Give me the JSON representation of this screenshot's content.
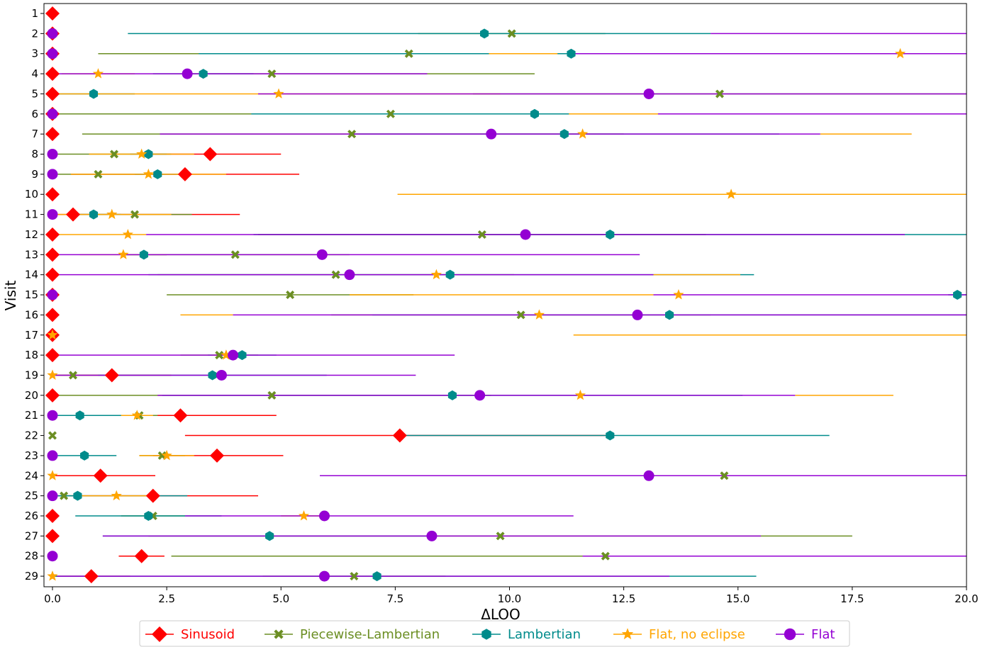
{
  "chart_data": {
    "type": "scatter",
    "xlabel": "ΔLOO",
    "ylabel": "Visit",
    "xlim": [
      0,
      20
    ],
    "x_ticks": [
      "0.0",
      "2.5",
      "5.0",
      "7.5",
      "10.0",
      "12.5",
      "15.0",
      "17.5",
      "20.0"
    ],
    "y_categories": [
      "1",
      "2",
      "3",
      "4",
      "5",
      "6",
      "7",
      "8",
      "9",
      "10",
      "11",
      "12",
      "13",
      "14",
      "15",
      "16",
      "17",
      "18",
      "19",
      "20",
      "21",
      "22",
      "23",
      "24",
      "25",
      "26",
      "27",
      "28",
      "29"
    ],
    "legend_position": "bottom",
    "series": [
      {
        "name": "Sinusoid",
        "color": "#ff0000",
        "marker": "diamond",
        "points": [
          {
            "visit": 1,
            "x": 0,
            "lo": 0,
            "hi": 0
          },
          {
            "visit": 2,
            "x": 0,
            "lo": 0,
            "hi": 0
          },
          {
            "visit": 3,
            "x": 0,
            "lo": 0,
            "hi": 0
          },
          {
            "visit": 4,
            "x": 0,
            "lo": 0,
            "hi": 0
          },
          {
            "visit": 5,
            "x": 0,
            "lo": 0,
            "hi": 0
          },
          {
            "visit": 6,
            "x": 0,
            "lo": 0,
            "hi": 0
          },
          {
            "visit": 7,
            "x": 0,
            "lo": 0,
            "hi": 0
          },
          {
            "visit": 8,
            "x": 3.45,
            "lo": 1.9,
            "hi": 5.0
          },
          {
            "visit": 9,
            "x": 2.9,
            "lo": 0.4,
            "hi": 5.4
          },
          {
            "visit": 10,
            "x": 0,
            "lo": 0,
            "hi": 0
          },
          {
            "visit": 11,
            "x": 0.45,
            "lo": 0,
            "hi": 4.1
          },
          {
            "visit": 12,
            "x": 0,
            "lo": 0,
            "hi": 0
          },
          {
            "visit": 13,
            "x": 0,
            "lo": 0,
            "hi": 0
          },
          {
            "visit": 14,
            "x": 0,
            "lo": 0,
            "hi": 0
          },
          {
            "visit": 15,
            "x": 0,
            "lo": 0,
            "hi": 0
          },
          {
            "visit": 16,
            "x": 0,
            "lo": 0,
            "hi": 0
          },
          {
            "visit": 17,
            "x": 0,
            "lo": 0,
            "hi": 0
          },
          {
            "visit": 18,
            "x": 0,
            "lo": 0,
            "hi": 0
          },
          {
            "visit": 19,
            "x": 1.3,
            "lo": 0,
            "hi": 2.6
          },
          {
            "visit": 20,
            "x": 0,
            "lo": 0,
            "hi": 0
          },
          {
            "visit": 21,
            "x": 2.8,
            "lo": 0.7,
            "hi": 4.9
          },
          {
            "visit": 22,
            "x": 7.6,
            "lo": 2.9,
            "hi": 12.3
          },
          {
            "visit": 23,
            "x": 3.6,
            "lo": 2.2,
            "hi": 5.05
          },
          {
            "visit": 24,
            "x": 1.05,
            "lo": 0,
            "hi": 2.25
          },
          {
            "visit": 25,
            "x": 2.2,
            "lo": 0,
            "hi": 4.5
          },
          {
            "visit": 26,
            "x": 0,
            "lo": 0,
            "hi": 0
          },
          {
            "visit": 27,
            "x": 0,
            "lo": 0,
            "hi": 0
          },
          {
            "visit": 28,
            "x": 1.95,
            "lo": 1.45,
            "hi": 2.45
          },
          {
            "visit": 29,
            "x": 0.85,
            "lo": 0,
            "hi": 1.7
          }
        ]
      },
      {
        "name": "Piecewise-Lambertian",
        "color": "#6b8e23",
        "marker": "x",
        "points": [
          {
            "visit": 2,
            "x": 10.05,
            "lo": 8.0,
            "hi": 12.1
          },
          {
            "visit": 3,
            "x": 7.8,
            "lo": 1.0,
            "hi": 14.6
          },
          {
            "visit": 4,
            "x": 4.8,
            "lo": 3.0,
            "hi": 10.55
          },
          {
            "visit": 5,
            "x": 14.6,
            "lo": 9.2,
            "hi": 20.0
          },
          {
            "visit": 6,
            "x": 7.4,
            "lo": 0,
            "hi": 14.8
          },
          {
            "visit": 7,
            "x": 6.55,
            "lo": 0.65,
            "hi": 12.5
          },
          {
            "visit": 8,
            "x": 1.35,
            "lo": 0.1,
            "hi": 2.6
          },
          {
            "visit": 9,
            "x": 1.0,
            "lo": 0,
            "hi": 2.0
          },
          {
            "visit": 11,
            "x": 1.8,
            "lo": 0.5,
            "hi": 3.05
          },
          {
            "visit": 12,
            "x": 9.4,
            "lo": 4.5,
            "hi": 14.3
          },
          {
            "visit": 13,
            "x": 4.0,
            "lo": 1.5,
            "hi": 6.5
          },
          {
            "visit": 14,
            "x": 6.2,
            "lo": 2.3,
            "hi": 10.1
          },
          {
            "visit": 15,
            "x": 5.2,
            "lo": 2.5,
            "hi": 7.9
          },
          {
            "visit": 16,
            "x": 10.25,
            "lo": 6.1,
            "hi": 14.4
          },
          {
            "visit": 18,
            "x": 3.65,
            "lo": 2.8,
            "hi": 4.5
          },
          {
            "visit": 19,
            "x": 0.45,
            "lo": 0,
            "hi": 1.2
          },
          {
            "visit": 20,
            "x": 4.8,
            "lo": 0,
            "hi": 9.6
          },
          {
            "visit": 21,
            "x": 1.9,
            "lo": 1.5,
            "hi": 2.3
          },
          {
            "visit": 22,
            "x": 0,
            "lo": 0,
            "hi": 0
          },
          {
            "visit": 23,
            "x": 2.4,
            "lo": 1.9,
            "hi": 2.9
          },
          {
            "visit": 24,
            "x": 14.7,
            "lo": 11.4,
            "hi": 18.0
          },
          {
            "visit": 25,
            "x": 0.25,
            "lo": 0,
            "hi": 0.6
          },
          {
            "visit": 26,
            "x": 2.2,
            "lo": 1.5,
            "hi": 2.9
          },
          {
            "visit": 27,
            "x": 9.8,
            "lo": 2.1,
            "hi": 17.5
          },
          {
            "visit": 28,
            "x": 12.1,
            "lo": 2.6,
            "hi": 20.0
          },
          {
            "visit": 29,
            "x": 6.6,
            "lo": 4.6,
            "hi": 8.6
          }
        ]
      },
      {
        "name": "Lambertian",
        "color": "#008b8b",
        "marker": "hexagon",
        "points": [
          {
            "visit": 2,
            "x": 9.45,
            "lo": 1.65,
            "hi": 14.4
          },
          {
            "visit": 3,
            "x": 11.35,
            "lo": 3.2,
            "hi": 19.5
          },
          {
            "visit": 4,
            "x": 3.3,
            "lo": 2.2,
            "hi": 4.4
          },
          {
            "visit": 5,
            "x": 0.9,
            "lo": 0,
            "hi": 1.8
          },
          {
            "visit": 6,
            "x": 10.55,
            "lo": 4.35,
            "hi": 16.75
          },
          {
            "visit": 7,
            "x": 11.2,
            "lo": 6.5,
            "hi": 15.9
          },
          {
            "visit": 8,
            "x": 2.1,
            "lo": 1.7,
            "hi": 2.5
          },
          {
            "visit": 9,
            "x": 2.3,
            "lo": 1.8,
            "hi": 2.8
          },
          {
            "visit": 11,
            "x": 0.9,
            "lo": 0.3,
            "hi": 1.5
          },
          {
            "visit": 12,
            "x": 12.2,
            "lo": 4.4,
            "hi": 20.0
          },
          {
            "visit": 13,
            "x": 2.0,
            "lo": 1.5,
            "hi": 2.5
          },
          {
            "visit": 14,
            "x": 8.7,
            "lo": 2.1,
            "hi": 15.35
          },
          {
            "visit": 15,
            "x": 19.8,
            "lo": 19.6,
            "hi": 20.0
          },
          {
            "visit": 16,
            "x": 13.5,
            "lo": 7.0,
            "hi": 20.0
          },
          {
            "visit": 18,
            "x": 4.15,
            "lo": 3.4,
            "hi": 4.9
          },
          {
            "visit": 19,
            "x": 3.5,
            "lo": 1.0,
            "hi": 6.0
          },
          {
            "visit": 20,
            "x": 8.75,
            "lo": 2.4,
            "hi": 15.1
          },
          {
            "visit": 21,
            "x": 0.6,
            "lo": 0,
            "hi": 1.6
          },
          {
            "visit": 22,
            "x": 12.2,
            "lo": 7.5,
            "hi": 17.0
          },
          {
            "visit": 23,
            "x": 0.7,
            "lo": 0,
            "hi": 1.4
          },
          {
            "visit": 24,
            "x": 13.05,
            "lo": 12.4,
            "hi": 13.7
          },
          {
            "visit": 25,
            "x": 0.55,
            "lo": 0,
            "hi": 2.95
          },
          {
            "visit": 26,
            "x": 2.1,
            "lo": 0.5,
            "hi": 3.7
          },
          {
            "visit": 27,
            "x": 4.75,
            "lo": 1.1,
            "hi": 8.4
          },
          {
            "visit": 29,
            "x": 7.1,
            "lo": 0,
            "hi": 15.4
          }
        ]
      },
      {
        "name": "Flat, no eclipse",
        "color": "#ffa500",
        "marker": "star",
        "points": [
          {
            "visit": 3,
            "x": 18.55,
            "lo": 9.55,
            "hi": 11.05
          },
          {
            "visit": 4,
            "x": 1.0,
            "lo": 0.2,
            "hi": 1.8
          },
          {
            "visit": 5,
            "x": 4.95,
            "lo": 0.1,
            "hi": 9.8
          },
          {
            "visit": 6,
            "x": 0,
            "lo": 11.3,
            "hi": 13.25
          },
          {
            "visit": 7,
            "x": 11.6,
            "lo": 16.8,
            "hi": 18.8
          },
          {
            "visit": 8,
            "x": 1.95,
            "lo": 0.8,
            "hi": 3.1
          },
          {
            "visit": 9,
            "x": 2.1,
            "lo": 0.4,
            "hi": 3.8
          },
          {
            "visit": 10,
            "x": 14.85,
            "lo": 7.55,
            "hi": 20.0
          },
          {
            "visit": 11,
            "x": 1.3,
            "lo": 0,
            "hi": 2.6
          },
          {
            "visit": 12,
            "x": 1.65,
            "lo": 0,
            "hi": 2.05
          },
          {
            "visit": 13,
            "x": 1.55,
            "lo": 0.6,
            "hi": 2.5
          },
          {
            "visit": 14,
            "x": 8.4,
            "lo": 13.15,
            "hi": 15.05
          },
          {
            "visit": 15,
            "x": 13.7,
            "lo": 6.5,
            "hi": 13.15
          },
          {
            "visit": 16,
            "x": 10.65,
            "lo": 2.8,
            "hi": 3.95
          },
          {
            "visit": 17,
            "x": 0,
            "lo": 11.4,
            "hi": 20.0
          },
          {
            "visit": 18,
            "x": 3.8,
            "lo": 3.5,
            "hi": 4.1
          },
          {
            "visit": 19,
            "x": 0,
            "lo": 0,
            "hi": 0
          },
          {
            "visit": 20,
            "x": 11.55,
            "lo": 16.25,
            "hi": 18.4
          },
          {
            "visit": 21,
            "x": 1.85,
            "lo": 1.5,
            "hi": 2.2
          },
          {
            "visit": 23,
            "x": 2.5,
            "lo": 1.9,
            "hi": 3.1
          },
          {
            "visit": 24,
            "x": 0,
            "lo": 0,
            "hi": 0
          },
          {
            "visit": 25,
            "x": 1.4,
            "lo": 0.6,
            "hi": 2.2
          },
          {
            "visit": 26,
            "x": 5.5,
            "lo": 5.0,
            "hi": 6.0
          },
          {
            "visit": 28,
            "x": 0,
            "lo": 0,
            "hi": 0
          },
          {
            "visit": 29,
            "x": 0,
            "lo": 0,
            "hi": 0
          }
        ]
      },
      {
        "name": "Flat",
        "color": "#9400d3",
        "marker": "circle",
        "points": [
          {
            "visit": 2,
            "x": 0,
            "lo": 14.4,
            "hi": 20.0
          },
          {
            "visit": 3,
            "x": 0,
            "lo": 11.35,
            "hi": 20.0
          },
          {
            "visit": 4,
            "x": 2.95,
            "lo": 0.1,
            "hi": 8.2
          },
          {
            "visit": 5,
            "x": 13.05,
            "lo": 4.5,
            "hi": 20.0
          },
          {
            "visit": 6,
            "x": 0,
            "lo": 13.25,
            "hi": 20.0
          },
          {
            "visit": 7,
            "x": 9.6,
            "lo": 2.35,
            "hi": 16.8
          },
          {
            "visit": 8,
            "x": 0,
            "lo": 0,
            "hi": 0
          },
          {
            "visit": 9,
            "x": 0,
            "lo": 0,
            "hi": 0
          },
          {
            "visit": 11,
            "x": 0,
            "lo": 0,
            "hi": 0
          },
          {
            "visit": 12,
            "x": 10.35,
            "lo": 2.05,
            "hi": 18.65
          },
          {
            "visit": 13,
            "x": 5.9,
            "lo": 0.1,
            "hi": 12.85
          },
          {
            "visit": 14,
            "x": 6.5,
            "lo": 0.1,
            "hi": 13.15
          },
          {
            "visit": 15,
            "x": 0,
            "lo": 13.15,
            "hi": 20.0
          },
          {
            "visit": 16,
            "x": 12.8,
            "lo": 3.95,
            "hi": 20.0
          },
          {
            "visit": 18,
            "x": 3.95,
            "lo": 0.1,
            "hi": 8.8
          },
          {
            "visit": 19,
            "x": 3.7,
            "lo": 0,
            "hi": 7.95
          },
          {
            "visit": 20,
            "x": 9.35,
            "lo": 2.3,
            "hi": 16.25
          },
          {
            "visit": 21,
            "x": 0,
            "lo": 0,
            "hi": 0
          },
          {
            "visit": 23,
            "x": 0,
            "lo": 0,
            "hi": 0
          },
          {
            "visit": 24,
            "x": 13.05,
            "lo": 5.85,
            "hi": 20.0
          },
          {
            "visit": 25,
            "x": 0,
            "lo": 0,
            "hi": 0
          },
          {
            "visit": 26,
            "x": 5.95,
            "lo": 2.9,
            "hi": 11.4
          },
          {
            "visit": 27,
            "x": 8.3,
            "lo": 1.1,
            "hi": 15.5
          },
          {
            "visit": 28,
            "x": 0,
            "lo": 11.6,
            "hi": 20.0
          },
          {
            "visit": 29,
            "x": 5.95,
            "lo": 0.1,
            "hi": 13.5
          }
        ]
      }
    ]
  }
}
